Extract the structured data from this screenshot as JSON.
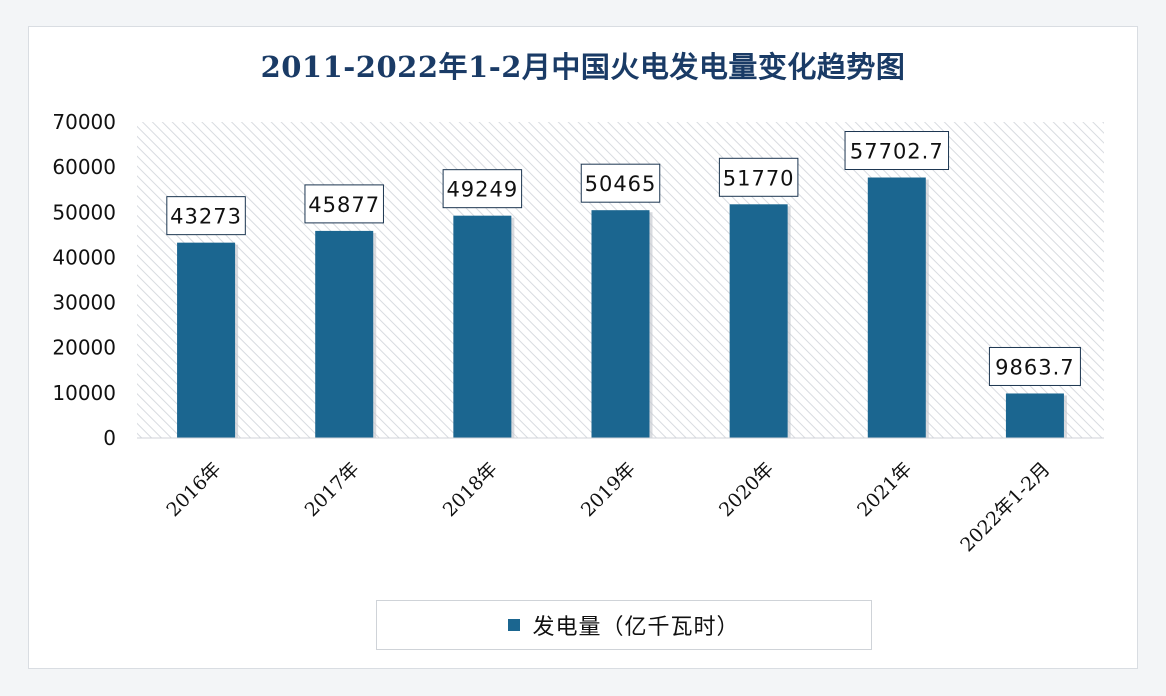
{
  "colors": {
    "bar": "#1b6690",
    "title": "#1a3b66",
    "hatch": "#d8dbe0",
    "label_border": "#1b3550"
  },
  "chart_data": {
    "type": "bar",
    "title": "2011-2022年1-2月中国火电发电量变化趋势图",
    "categories": [
      "2016年",
      "2017年",
      "2018年",
      "2019年",
      "2020年",
      "2021年",
      "2022年1-2月"
    ],
    "series": [
      {
        "name": "发电量（亿千瓦时）",
        "values": [
          43273,
          45877,
          49249,
          50465,
          51770,
          57702.7,
          9863.7
        ]
      }
    ],
    "data_labels": [
      "43273",
      "45877",
      "49249",
      "50465",
      "51770",
      "57702.7",
      "9863.7"
    ],
    "ylim": [
      0,
      70000
    ],
    "yticks": [
      0,
      10000,
      20000,
      30000,
      40000,
      50000,
      60000,
      70000
    ],
    "ytick_labels": [
      "0",
      "10000",
      "20000",
      "30000",
      "40000",
      "50000",
      "60000",
      "70000"
    ],
    "xlabel": "",
    "ylabel": "",
    "legend_position": "bottom"
  }
}
